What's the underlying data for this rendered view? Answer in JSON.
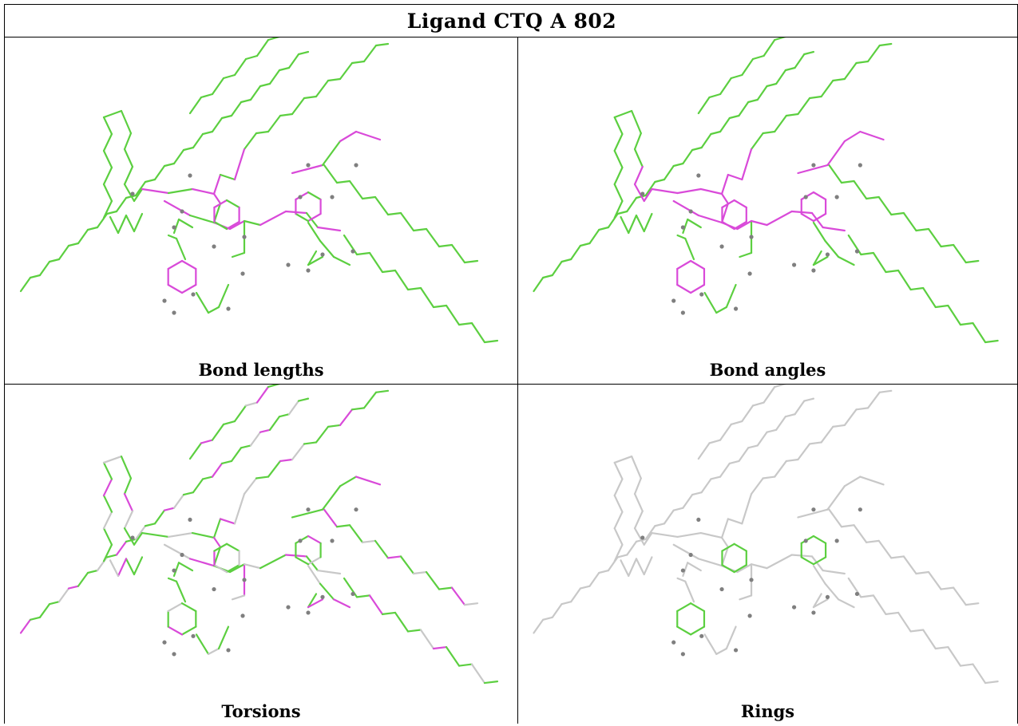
{
  "title": "Ligand CTQ A 802",
  "colors": {
    "green": "#5ccf40",
    "magenta": "#d94ad9",
    "grey": "#c8c8c8",
    "atom": "#7f7f7f",
    "border": "#000000"
  },
  "panels": [
    {
      "caption": "Bond lengths"
    },
    {
      "caption": "Bond angles"
    },
    {
      "caption": "Torsions"
    },
    {
      "caption": "Rings"
    }
  ]
}
